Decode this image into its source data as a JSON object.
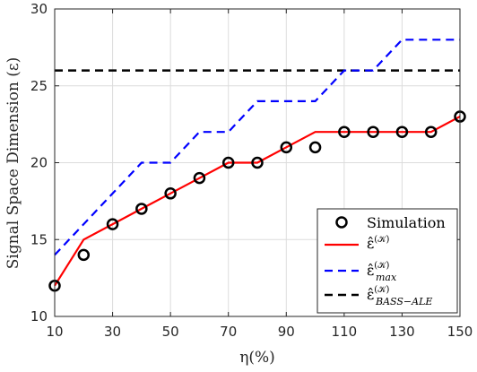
{
  "chart_data": {
    "type": "line",
    "xlabel": "η(%)",
    "ylabel": "Signal Space Dimension (ε)",
    "xlim": [
      10,
      150
    ],
    "ylim": [
      10,
      30
    ],
    "xticks": [
      10,
      30,
      50,
      70,
      90,
      110,
      130,
      150
    ],
    "yticks": [
      10,
      15,
      20,
      25,
      30
    ],
    "grid": true,
    "legend_position": "bottom-right",
    "series": [
      {
        "name": "Simulation",
        "style": "markers",
        "color": "#000000",
        "x": [
          10,
          20,
          30,
          40,
          50,
          60,
          70,
          80,
          90,
          100,
          110,
          120,
          130,
          140,
          150
        ],
        "y": [
          12,
          14,
          16,
          17,
          18,
          19,
          20,
          20,
          21,
          21,
          22,
          22,
          22,
          22,
          23
        ]
      },
      {
        "name": "ε̂^(K)",
        "style": "solid",
        "color": "#ff0000",
        "x": [
          10,
          20,
          30,
          40,
          50,
          60,
          70,
          80,
          90,
          100,
          110,
          120,
          130,
          140,
          150
        ],
        "y": [
          12,
          15,
          16,
          17,
          18,
          19,
          20,
          20,
          21,
          22,
          22,
          22,
          22,
          22,
          23
        ]
      },
      {
        "name": "ε̂^(K)_max",
        "style": "dashed",
        "color": "#0000ff",
        "x": [
          10,
          40,
          50,
          60,
          70,
          80,
          90,
          100,
          110,
          120,
          130,
          140,
          150
        ],
        "y": [
          14,
          20,
          20,
          22,
          22,
          24,
          24,
          24,
          26,
          26,
          28,
          28,
          28
        ]
      },
      {
        "name": "ε̂^(K)_BASS−ALE",
        "style": "dashed",
        "color": "#000000",
        "x": [
          10,
          150
        ],
        "y": [
          26,
          26
        ]
      }
    ]
  },
  "legend": {
    "entries": [
      {
        "main": "Simulation",
        "sup": "",
        "sub": ""
      },
      {
        "main": "ε̂",
        "sup": "(𝒦)",
        "sub": ""
      },
      {
        "main": "ε̂",
        "sup": "(𝒦)",
        "sub": "max"
      },
      {
        "main": "ε̂",
        "sup": "(𝒦)",
        "sub": "BASS−ALE"
      }
    ]
  }
}
